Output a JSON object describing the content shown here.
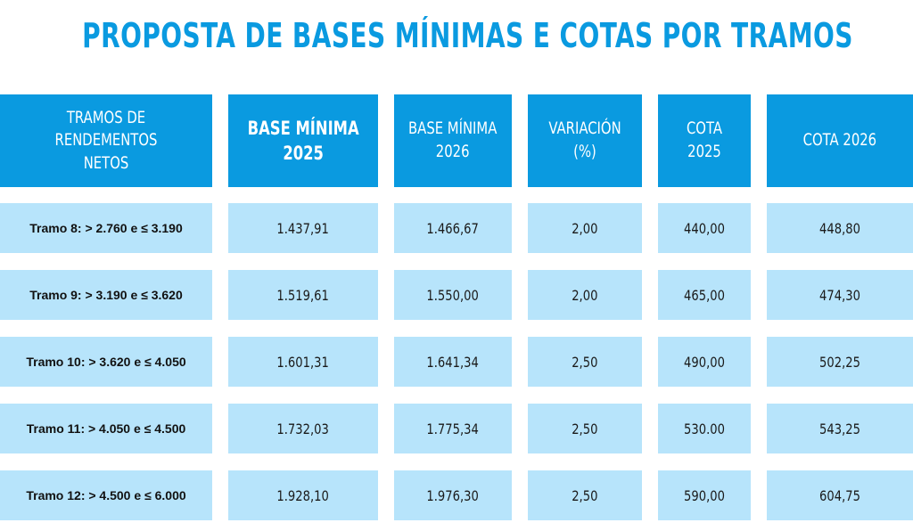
{
  "title": "PROPOSTA DE BASES MÍNIMAS E COTAS POR TRAMOS",
  "headers": [
    "TRAMOS DE RENDEMENTOS\nNETOS",
    "BASE MÍNIMA\n2025",
    "BASE MÍNIMA\n2026",
    "VARIACIÓN (%)",
    "COTA 2025",
    "COTA 2026"
  ],
  "rows": [
    [
      "Tramo 8: > 2.760 e ≤ 3.190",
      "1.437,91",
      "1.466,67",
      "2,00",
      "440,00",
      "448,80"
    ],
    [
      "Tramo 9: > 3.190 e ≤ 3.620",
      "1.519,61",
      "1.550,00",
      "2,00",
      "465,00",
      "474,30"
    ],
    [
      "Tramo 10: > 3.620 e ≤ 4.050",
      "1.601,31",
      "1.641,34",
      "2,50",
      "490,00",
      "502,25"
    ],
    [
      "Tramo 11: > 4.050 e ≤ 4.500",
      "1.732,03",
      "1.775,34",
      "2,50",
      "530.00",
      "543,25"
    ],
    [
      "Tramo 12: > 4.500 e ≤ 6.000",
      "1.928,10",
      "1.976,30",
      "2,50",
      "590,00",
      "604,75"
    ]
  ],
  "colors": {
    "header_bg": "#0a9ae0",
    "cell_bg": "#b7e4fb",
    "title": "#0a9ae0"
  }
}
